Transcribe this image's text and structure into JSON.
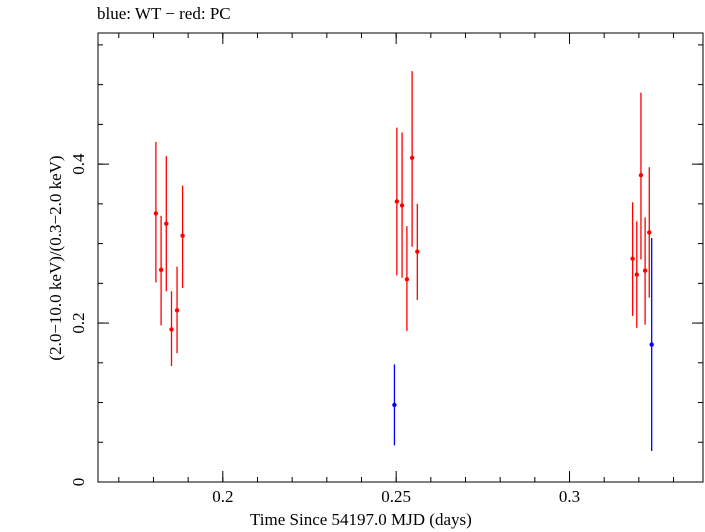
{
  "chart_data": {
    "type": "scatter",
    "title": "blue: WT − red: PC",
    "xlabel": "Time Since 54197.0 MJD (days)",
    "ylabel": "(2.0−10.0 keV)/(0.3−2.0 keV)",
    "xlim": [
      0.164,
      0.3385
    ],
    "ylim": [
      0,
      0.565
    ],
    "x_ticks": [
      0.2,
      0.25,
      0.3
    ],
    "x_tick_labels": [
      "0.2",
      "0.25",
      "0.3"
    ],
    "y_ticks": [
      0,
      0.2,
      0.4
    ],
    "y_tick_labels": [
      "0",
      "0.2",
      "0.4"
    ],
    "x_minor_step": 0.01,
    "y_minor_step": 0.05,
    "grid": false,
    "series": [
      {
        "name": "PC",
        "color": "#ff0000",
        "points": [
          {
            "x": 0.1807,
            "y": 0.338,
            "ylo": 0.251,
            "yhi": 0.428
          },
          {
            "x": 0.1822,
            "y": 0.267,
            "ylo": 0.197,
            "yhi": 0.335
          },
          {
            "x": 0.1837,
            "y": 0.325,
            "ylo": 0.24,
            "yhi": 0.41
          },
          {
            "x": 0.1852,
            "y": 0.192,
            "ylo": 0.146,
            "yhi": 0.24
          },
          {
            "x": 0.1868,
            "y": 0.216,
            "ylo": 0.162,
            "yhi": 0.271
          },
          {
            "x": 0.1884,
            "y": 0.31,
            "ylo": 0.244,
            "yhi": 0.373
          },
          {
            "x": 0.2502,
            "y": 0.353,
            "ylo": 0.26,
            "yhi": 0.446
          },
          {
            "x": 0.2517,
            "y": 0.348,
            "ylo": 0.257,
            "yhi": 0.44
          },
          {
            "x": 0.2531,
            "y": 0.255,
            "ylo": 0.19,
            "yhi": 0.322
          },
          {
            "x": 0.2546,
            "y": 0.408,
            "ylo": 0.296,
            "yhi": 0.517
          },
          {
            "x": 0.2561,
            "y": 0.29,
            "ylo": 0.229,
            "yhi": 0.35
          },
          {
            "x": 0.3182,
            "y": 0.281,
            "ylo": 0.209,
            "yhi": 0.352
          },
          {
            "x": 0.3194,
            "y": 0.261,
            "ylo": 0.194,
            "yhi": 0.328
          },
          {
            "x": 0.3206,
            "y": 0.386,
            "ylo": 0.28,
            "yhi": 0.49
          },
          {
            "x": 0.3218,
            "y": 0.266,
            "ylo": 0.198,
            "yhi": 0.333
          },
          {
            "x": 0.323,
            "y": 0.314,
            "ylo": 0.232,
            "yhi": 0.396
          }
        ]
      },
      {
        "name": "WT",
        "color": "#0000ff",
        "points": [
          {
            "x": 0.2495,
            "y": 0.097,
            "ylo": 0.046,
            "yhi": 0.148
          },
          {
            "x": 0.3237,
            "y": 0.173,
            "ylo": 0.039,
            "yhi": 0.307
          }
        ]
      }
    ]
  }
}
